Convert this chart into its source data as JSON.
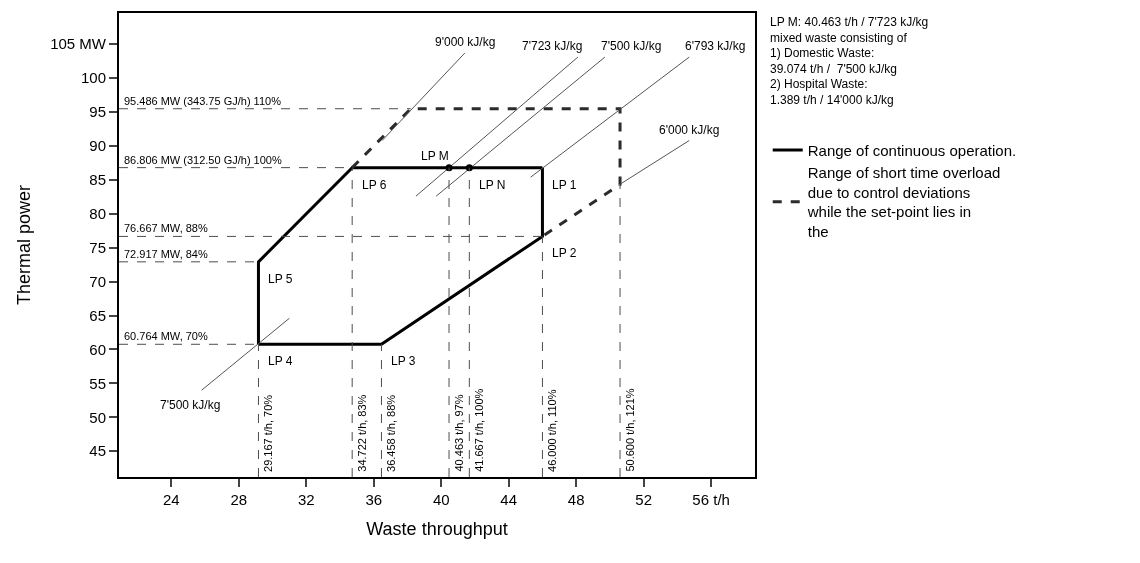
{
  "chart_data": {
    "type": "line",
    "xlabel": "Waste throughput",
    "ylabel": "Thermal power",
    "xlim": [
      20.9,
      58.6
    ],
    "ylim": [
      41.2,
      109.6
    ],
    "xticks": [
      24,
      28,
      32,
      36,
      40,
      44,
      48,
      52,
      {
        "value": 56,
        "label": "56 t/h"
      }
    ],
    "yticks": [
      45,
      50,
      55,
      60,
      65,
      70,
      75,
      80,
      85,
      90,
      95,
      100,
      {
        "value": 105,
        "label": "105 MW"
      }
    ],
    "legend": "right",
    "series": [
      {
        "name": "Range of continuous operation.",
        "color": "#000000",
        "line_style": "solid",
        "x": [
          29.167,
          29.167,
          34.722,
          46
        ],
        "values": [
          60.764,
          72.917,
          86.806,
          86.806
        ]
      },
      {
        "color": "#000000",
        "line_style": "solid",
        "x": [
          29.167,
          36.458,
          46,
          46
        ],
        "values": [
          60.764,
          60.764,
          76.667,
          86.806
        ]
      },
      {
        "name": "Range of short time overload due to control deviations while the set-point lies in the",
        "color": "#2b2b2b",
        "line_style": "dashed",
        "x": [
          34.722,
          38.194,
          50.6,
          50.6,
          46
        ],
        "values": [
          86.806,
          95.486,
          95.486,
          84.333,
          76.667
        ]
      },
      {
        "color": "#555555",
        "line_style": "solid",
        "x": [
          36.5,
          41.4
        ],
        "values": [
          90.8,
          103.7
        ]
      },
      {
        "color": "#555555",
        "line_style": "solid",
        "x": [
          38.5,
          48.1
        ],
        "values": [
          82.6,
          103.1
        ]
      },
      {
        "color": "#555555",
        "line_style": "solid",
        "x": [
          39.7,
          49.7
        ],
        "values": [
          82.6,
          103.1
        ]
      },
      {
        "color": "#555555",
        "line_style": "solid",
        "x": [
          45.3,
          54.7
        ],
        "values": [
          85.4,
          103.1
        ]
      },
      {
        "color": "#555555",
        "line_style": "solid",
        "x": [
          50.5,
          54.7
        ],
        "values": [
          84.2,
          90.8
        ]
      },
      {
        "color": "#555555",
        "line_style": "solid",
        "x": [
          25.8,
          31.0
        ],
        "values": [
          54.0,
          64.6
        ]
      },
      {
        "type": "scatter",
        "marker": "circle",
        "color": "#000000",
        "x": [
          40.463,
          41.667
        ],
        "values": [
          86.806,
          86.806
        ]
      }
    ],
    "ref_lines": [
      {
        "axis": "y",
        "value": 95.486,
        "label": "95.486 MW (343.75 GJ/h) 110%",
        "color": "#4d4d4d",
        "line_style": "dashed"
      },
      {
        "axis": "y",
        "value": 86.806,
        "label": "86.806 MW (312.50 GJ/h) 100%",
        "color": "#4d4d4d",
        "line_style": "dashed"
      },
      {
        "axis": "y",
        "value": 76.667,
        "label": "76.667 MW, 88%",
        "color": "#4d4d4d",
        "line_style": "dashed"
      },
      {
        "axis": "y",
        "value": 72.917,
        "label": "72.917 MW, 84%",
        "color": "#4d4d4d",
        "line_style": "dashed"
      },
      {
        "axis": "y",
        "value": 60.764,
        "label": "60.764 MW, 70%",
        "color": "#4d4d4d",
        "line_style": "dashed"
      },
      {
        "axis": "x",
        "value": 29.167,
        "label": "29.167 t/h, 70%",
        "color": "#4d4d4d",
        "line_style": "dashed"
      },
      {
        "axis": "x",
        "value": 34.722,
        "label": "34.722 t/h, 83%",
        "color": "#4d4d4d",
        "line_style": "dashed"
      },
      {
        "axis": "x",
        "value": 36.458,
        "label": "36.458 t/h, 88%",
        "color": "#4d4d4d",
        "line_style": "dashed"
      },
      {
        "axis": "x",
        "value": 40.463,
        "label": "40.463 t/h, 97%",
        "color": "#4d4d4d",
        "line_style": "dashed"
      },
      {
        "axis": "x",
        "value": 41.667,
        "label": "41.667 t/h, 100%",
        "color": "#4d4d4d",
        "line_style": "dashed"
      },
      {
        "axis": "x",
        "value": 46.0,
        "label": "46.000 t/h, 110%",
        "color": "#4d4d4d",
        "line_style": "dashed"
      },
      {
        "axis": "x",
        "value": 50.6,
        "label": "50.600 t/h, 121%",
        "color": "#4d4d4d",
        "line_style": "dashed"
      }
    ],
    "annotations": [
      {
        "text": "LP 1",
        "x": 46,
        "y": 86.806
      },
      {
        "text": "LP 2",
        "x": 46,
        "y": 76.667
      },
      {
        "text": "LP 3",
        "x": 36.458,
        "y": 60.764
      },
      {
        "text": "LP 4",
        "x": 29.167,
        "y": 60.764
      },
      {
        "text": "LP 5",
        "x": 29.167,
        "y": 72.917
      },
      {
        "text": "LP 6",
        "x": 34.722,
        "y": 86.806
      },
      {
        "text": "LP M",
        "x": 40.463,
        "y": 86.806
      },
      {
        "text": "LP N",
        "x": 41.667,
        "y": 86.806
      },
      {
        "text": "9'000 kJ/kg",
        "x": 41.4,
        "y": 103.7
      },
      {
        "text": "7'723 kJ/kg",
        "x": 48.1,
        "y": 103.1
      },
      {
        "text": "7'500 kJ/kg",
        "x": 49.7,
        "y": 103.1
      },
      {
        "text": "6'793 kJ/kg",
        "x": 54.7,
        "y": 103.1
      },
      {
        "text": "6'000 kJ/kg",
        "x": 54.7,
        "y": 90.8
      },
      {
        "text": "7'500 kJ/kg",
        "x": 25.8,
        "y": 54.0
      },
      "LP M: 40.463 t/h / 7'723 kJ/kg\nmixed waste consisting of\n1) Domestic Waste:\n39.074 t/h /  7'500 kJ/kg\n2) Hospital Waste:\n1.389 t/h / 14'000 kJ/kg"
    ]
  }
}
